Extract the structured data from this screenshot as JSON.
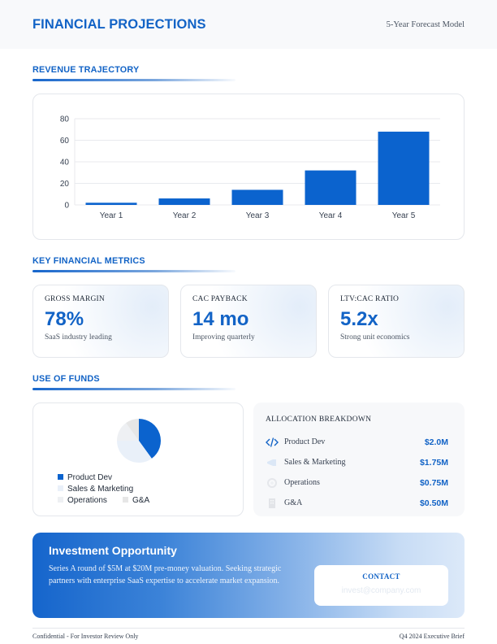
{
  "header": {
    "title": "FINANCIAL PROJECTIONS",
    "subtitle": "5-Year Forecast Model"
  },
  "sections": {
    "revenue": "REVENUE TRAJECTORY",
    "metrics": "KEY FINANCIAL METRICS",
    "funds": "USE OF FUNDS"
  },
  "chart_data": [
    {
      "type": "bar",
      "categories": [
        "Year 1",
        "Year 2",
        "Year 3",
        "Year 4",
        "Year 5"
      ],
      "values": [
        2,
        6,
        14,
        32,
        68
      ],
      "title": "",
      "xlabel": "",
      "ylabel": "",
      "ylim": [
        0,
        80
      ],
      "yticks": [
        0,
        20,
        40,
        60,
        80
      ],
      "grid": true,
      "color": "#0b63ce"
    },
    {
      "type": "pie",
      "categories": [
        "Product Dev",
        "Sales & Marketing",
        "Operations",
        "G&A"
      ],
      "values": [
        2.0,
        1.75,
        0.75,
        0.5
      ],
      "colors": [
        "#0b63ce",
        "#e9f0f9",
        "#eef0f3",
        "#e6e6e6"
      ],
      "legend_position": "bottom"
    }
  ],
  "metrics": [
    {
      "label": "GROSS MARGIN",
      "value": "78%",
      "note": "SaaS industry leading"
    },
    {
      "label": "CAC PAYBACK",
      "value": "14 mo",
      "note": "Improving quarterly"
    },
    {
      "label": "LTV:CAC RATIO",
      "value": "5.2x",
      "note": "Strong unit economics"
    }
  ],
  "allocation": {
    "title": "ALLOCATION BREAKDOWN",
    "rows": [
      {
        "name": "Product Dev",
        "amount": "$2.0M",
        "icon": "code-icon"
      },
      {
        "name": "Sales & Marketing",
        "amount": "$1.75M",
        "icon": "megaphone-icon"
      },
      {
        "name": "Operations",
        "amount": "$0.75M",
        "icon": "gear-icon"
      },
      {
        "name": "G&A",
        "amount": "$0.50M",
        "icon": "building-icon"
      }
    ]
  },
  "investment": {
    "title": "Investment Opportunity",
    "line1": "Series A round of $5M at $20M pre-money valuation. Seeking strategic",
    "line2": "partners with enterprise SaaS expertise to accelerate market expansion.",
    "contact_label": "CONTACT",
    "contact_email": "invest@company.com"
  },
  "footer": {
    "left": "Confidential - For Investor Review Only",
    "right": "Q4 2024 Executive Brief"
  },
  "colors": {
    "accent": "#1263c6",
    "bar": "#0b63ce"
  }
}
